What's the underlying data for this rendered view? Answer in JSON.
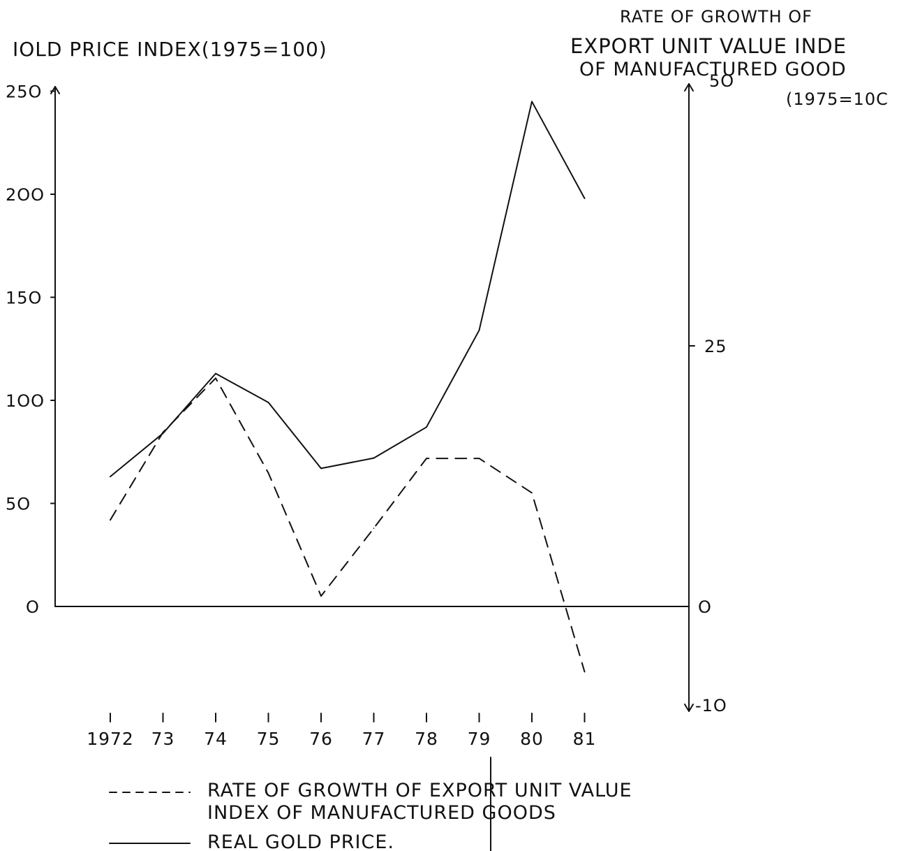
{
  "chart_data": {
    "type": "line",
    "left_axis_title": "IOLD PRICE INDEX(1975=100)",
    "right_axis_title_lines": [
      "RATE OF GROWTH OF",
      "EXPORT UNIT VALUE INDE",
      "OF MANUFACTURED GOOD",
      "(1975=10C"
    ],
    "categories": [
      "1972",
      "73",
      "74",
      "75",
      "76",
      "77",
      "78",
      "79",
      "80",
      "81"
    ],
    "left_ylim": [
      0,
      250
    ],
    "left_ticks": [
      0,
      50,
      100,
      150,
      200,
      250
    ],
    "left_tick_labels": [
      "O",
      "5O",
      "1OO",
      "15O",
      "2OO",
      "25O"
    ],
    "right_ylim": [
      -10,
      50
    ],
    "right_ticks": [
      -10,
      0,
      25,
      50
    ],
    "right_tick_labels": [
      "-1O",
      "O",
      "25",
      "5O"
    ],
    "series": [
      {
        "name": "RATE OF GROWTH OF EXPORT UNIT VALUE INDEX OF MANUFACTURED GOODS",
        "axis": "right",
        "style": "dashed",
        "values": [
          8.3,
          16.7,
          21.9,
          12.8,
          1.0,
          7.5,
          14.2,
          14.2,
          10.9,
          -6.4
        ]
      },
      {
        "name": "REAL GOLD PRICE.",
        "axis": "left",
        "style": "solid",
        "values": [
          63,
          84,
          113,
          99,
          67,
          72,
          87,
          134,
          245,
          198
        ]
      }
    ],
    "legend": {
      "position": "bottom",
      "dashed_line1": "RATE OF GROWTH OF EXPORT UNIT VALUE",
      "dashed_line2": "INDEX OF MANUFACTURED GOODS",
      "solid": "REAL GOLD PRICE."
    }
  }
}
